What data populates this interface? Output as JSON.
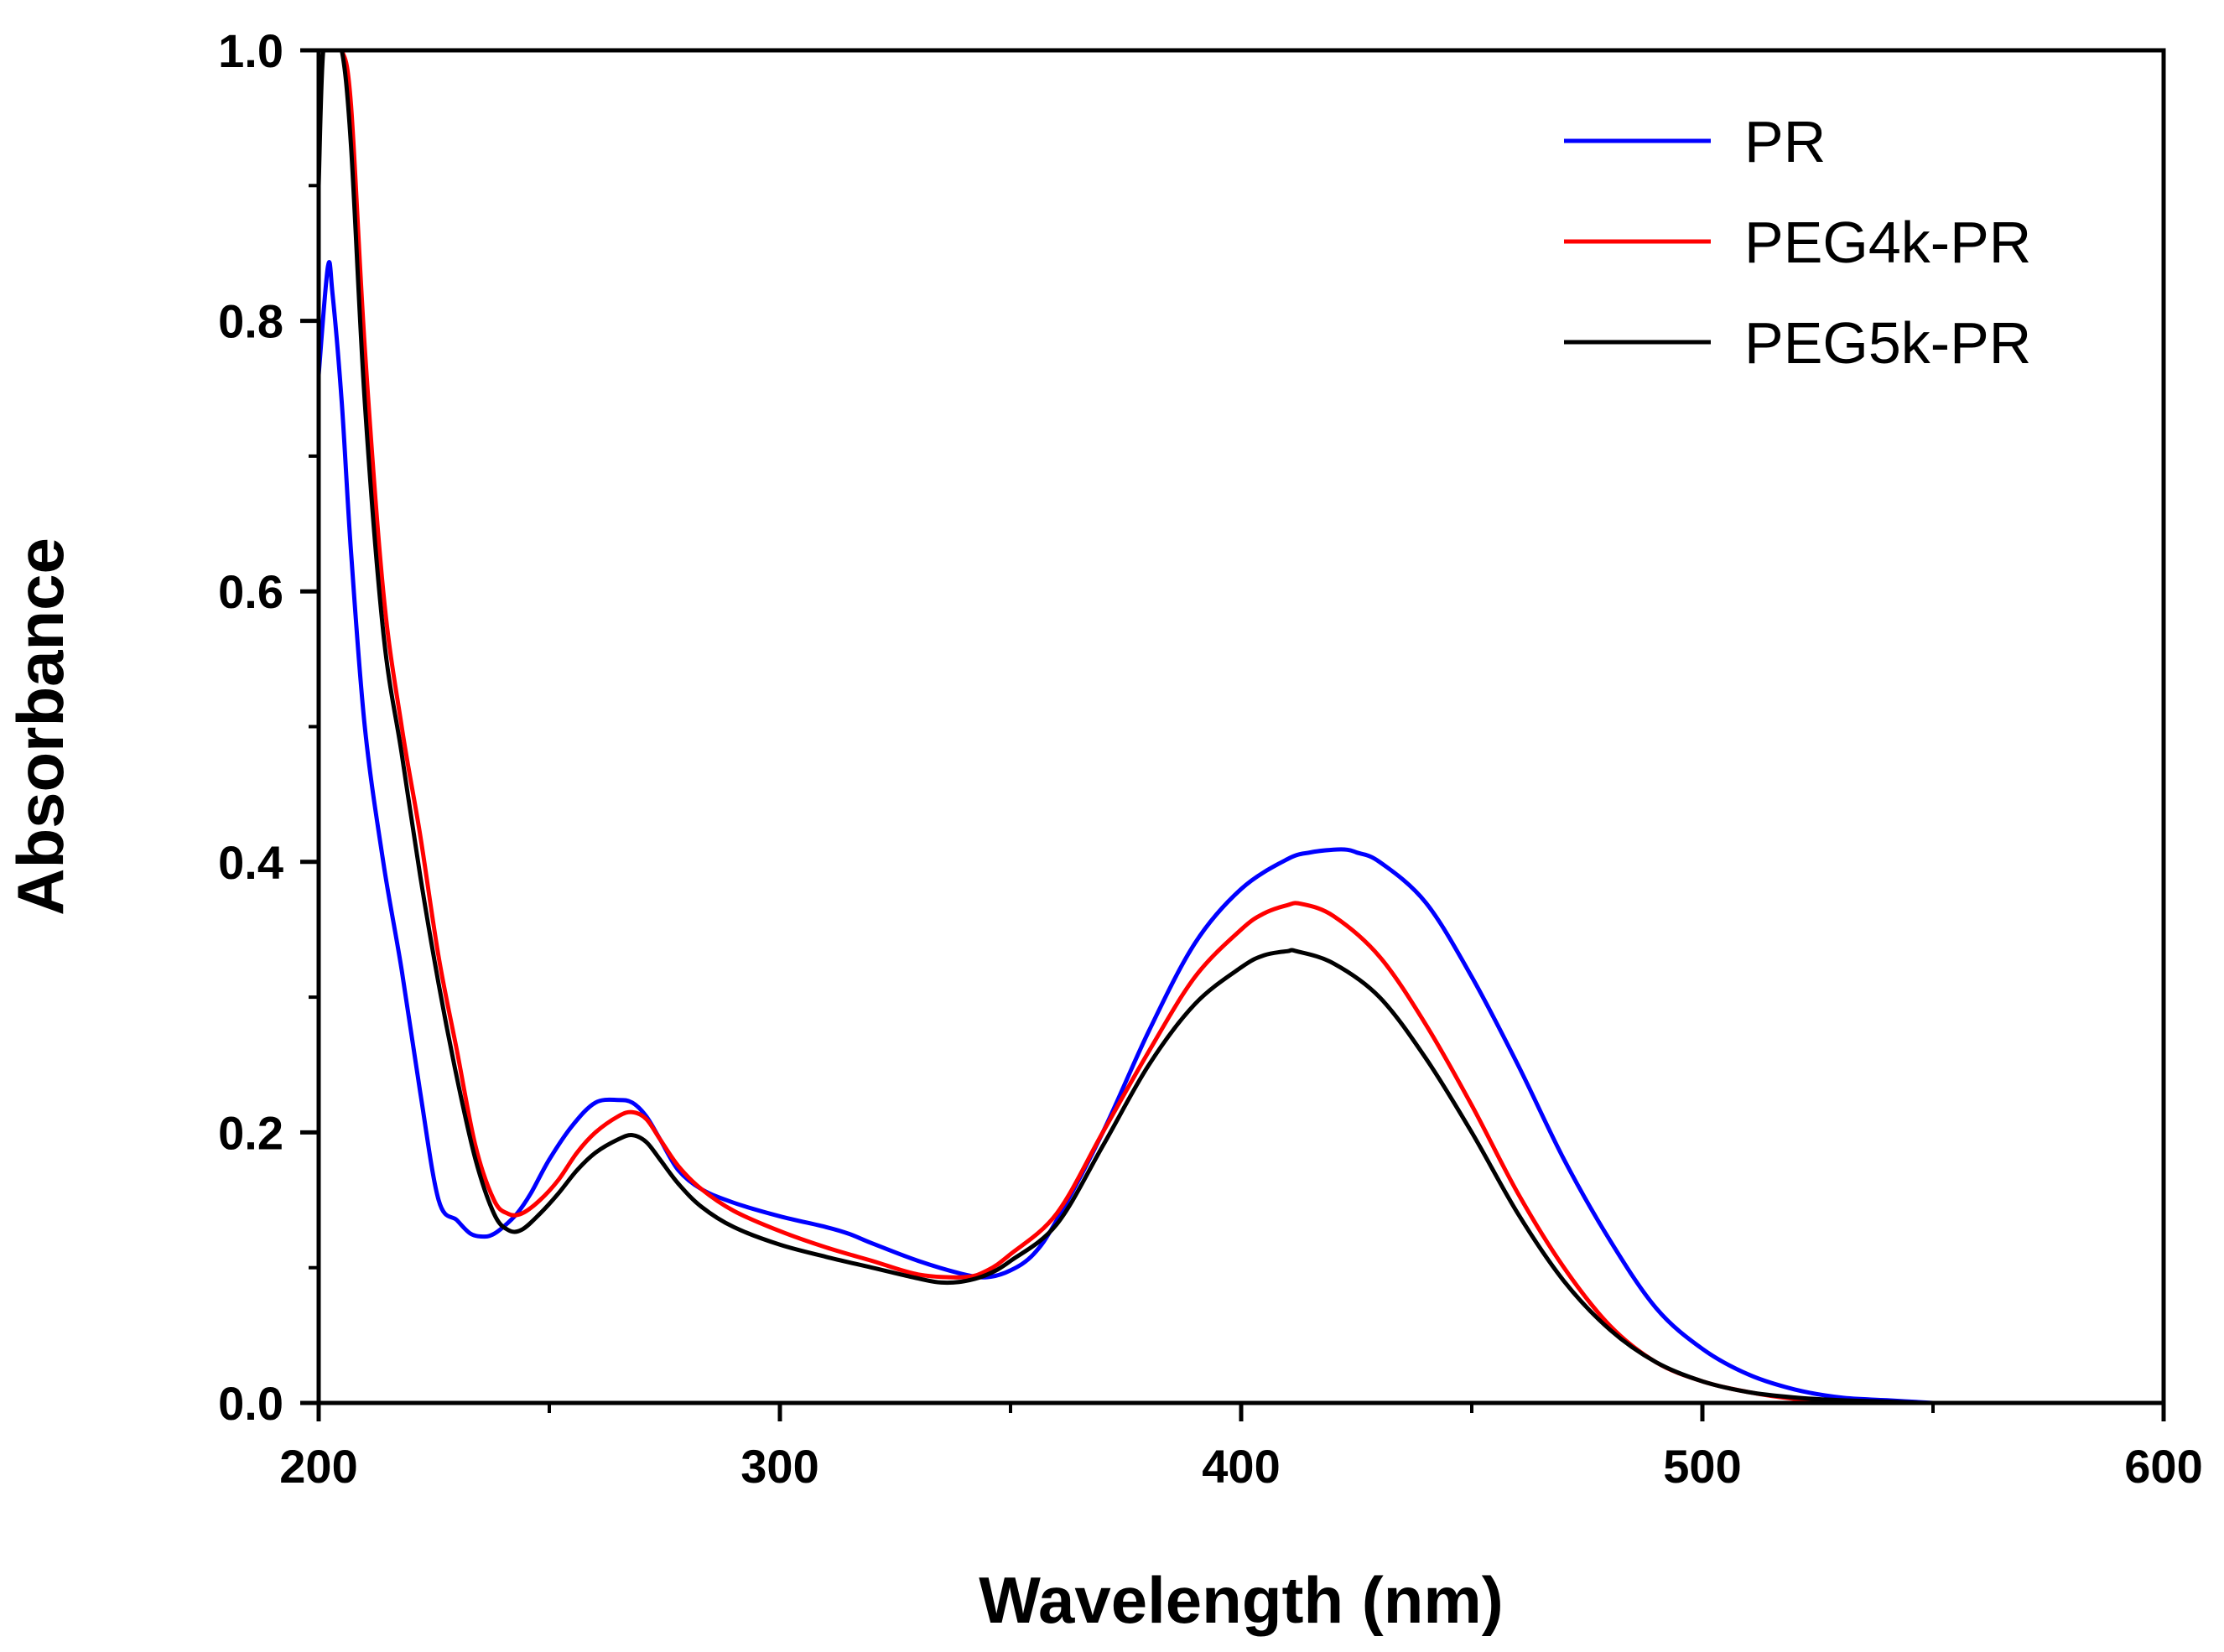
{
  "chart_data": {
    "type": "line",
    "title": "",
    "xlabel": "Wavelength (nm)",
    "ylabel": "Absorbance",
    "xlim": [
      200,
      600
    ],
    "ylim": [
      0.0,
      1.0
    ],
    "xticks": [
      200,
      300,
      400,
      500,
      600
    ],
    "xtick_labels": [
      "200",
      "300",
      "400",
      "500",
      "600"
    ],
    "yticks": [
      0.0,
      0.2,
      0.4,
      0.6,
      0.8,
      1.0
    ],
    "ytick_labels": [
      "0.0",
      "0.2",
      "0.4",
      "0.6",
      "0.8",
      "1.0"
    ],
    "grid": false,
    "legend_position": "top-right",
    "series": [
      {
        "name": "PR",
        "color": "#0000ff",
        "x": [
          200,
          202,
          203,
          205,
          207,
          210,
          214,
          218,
          222,
          226,
          230,
          233,
          236,
          238,
          240,
          243,
          246,
          250,
          255,
          260,
          265,
          268,
          271,
          274,
          278,
          283,
          290,
          300,
          310,
          315,
          320,
          330,
          340,
          345,
          350,
          355,
          360,
          370,
          380,
          390,
          400,
          410,
          415,
          420,
          423,
          425,
          430,
          440,
          450,
          460,
          470,
          480,
          490,
          500,
          510,
          520,
          530,
          540,
          550
        ],
        "y": [
          0.76,
          0.84,
          0.82,
          0.74,
          0.63,
          0.5,
          0.4,
          0.32,
          0.23,
          0.15,
          0.135,
          0.125,
          0.123,
          0.125,
          0.13,
          0.14,
          0.155,
          0.18,
          0.205,
          0.222,
          0.224,
          0.222,
          0.212,
          0.195,
          0.172,
          0.158,
          0.148,
          0.138,
          0.13,
          0.125,
          0.118,
          0.105,
          0.095,
          0.093,
          0.098,
          0.11,
          0.135,
          0.2,
          0.275,
          0.34,
          0.38,
          0.402,
          0.407,
          0.409,
          0.409,
          0.407,
          0.4,
          0.37,
          0.315,
          0.25,
          0.18,
          0.12,
          0.07,
          0.04,
          0.021,
          0.01,
          0.004,
          0.002,
          0.0
        ]
      },
      {
        "name": "PEG4k-PR",
        "color": "#ff0000",
        "x": [
          201,
          203,
          205,
          207,
          210,
          214,
          218,
          222,
          226,
          230,
          234,
          238,
          241,
          244,
          248,
          252,
          256,
          260,
          265,
          268,
          271,
          274,
          278,
          283,
          290,
          300,
          310,
          320,
          330,
          340,
          345,
          350,
          360,
          370,
          380,
          390,
          400,
          405,
          410,
          413,
          420,
          430,
          440,
          450,
          460,
          470,
          480,
          490,
          500,
          510,
          520,
          530,
          540,
          550
        ],
        "y": [
          1.0,
          1.0,
          1.0,
          0.96,
          0.78,
          0.6,
          0.5,
          0.42,
          0.33,
          0.26,
          0.19,
          0.15,
          0.14,
          0.14,
          0.15,
          0.165,
          0.185,
          0.2,
          0.212,
          0.215,
          0.21,
          0.195,
          0.175,
          0.158,
          0.142,
          0.127,
          0.115,
          0.105,
          0.095,
          0.093,
          0.098,
          0.11,
          0.14,
          0.2,
          0.26,
          0.315,
          0.35,
          0.362,
          0.368,
          0.369,
          0.36,
          0.33,
          0.28,
          0.22,
          0.155,
          0.1,
          0.057,
          0.03,
          0.016,
          0.008,
          0.003,
          0.001,
          0.0,
          0.0
        ]
      },
      {
        "name": "PEG5k-PR",
        "color": "#000000",
        "x": [
          200,
          201,
          203,
          205,
          207,
          210,
          214,
          218,
          222,
          226,
          230,
          234,
          238,
          241,
          244,
          248,
          252,
          256,
          260,
          265,
          268,
          271,
          274,
          278,
          283,
          290,
          300,
          310,
          320,
          330,
          335,
          340,
          345,
          350,
          360,
          370,
          380,
          390,
          400,
          405,
          410,
          412,
          420,
          430,
          440,
          450,
          460,
          470,
          480,
          490,
          500,
          510,
          520,
          530,
          540,
          548
        ],
        "y": [
          0.9,
          1.0,
          1.0,
          1.0,
          0.93,
          0.74,
          0.57,
          0.48,
          0.39,
          0.31,
          0.24,
          0.18,
          0.14,
          0.128,
          0.128,
          0.14,
          0.155,
          0.172,
          0.185,
          0.195,
          0.198,
          0.193,
          0.18,
          0.162,
          0.145,
          0.13,
          0.117,
          0.108,
          0.1,
          0.092,
          0.089,
          0.09,
          0.095,
          0.105,
          0.132,
          0.19,
          0.25,
          0.295,
          0.322,
          0.331,
          0.334,
          0.334,
          0.325,
          0.3,
          0.255,
          0.2,
          0.14,
          0.09,
          0.054,
          0.03,
          0.016,
          0.008,
          0.004,
          0.002,
          0.001,
          0.0
        ]
      }
    ]
  }
}
